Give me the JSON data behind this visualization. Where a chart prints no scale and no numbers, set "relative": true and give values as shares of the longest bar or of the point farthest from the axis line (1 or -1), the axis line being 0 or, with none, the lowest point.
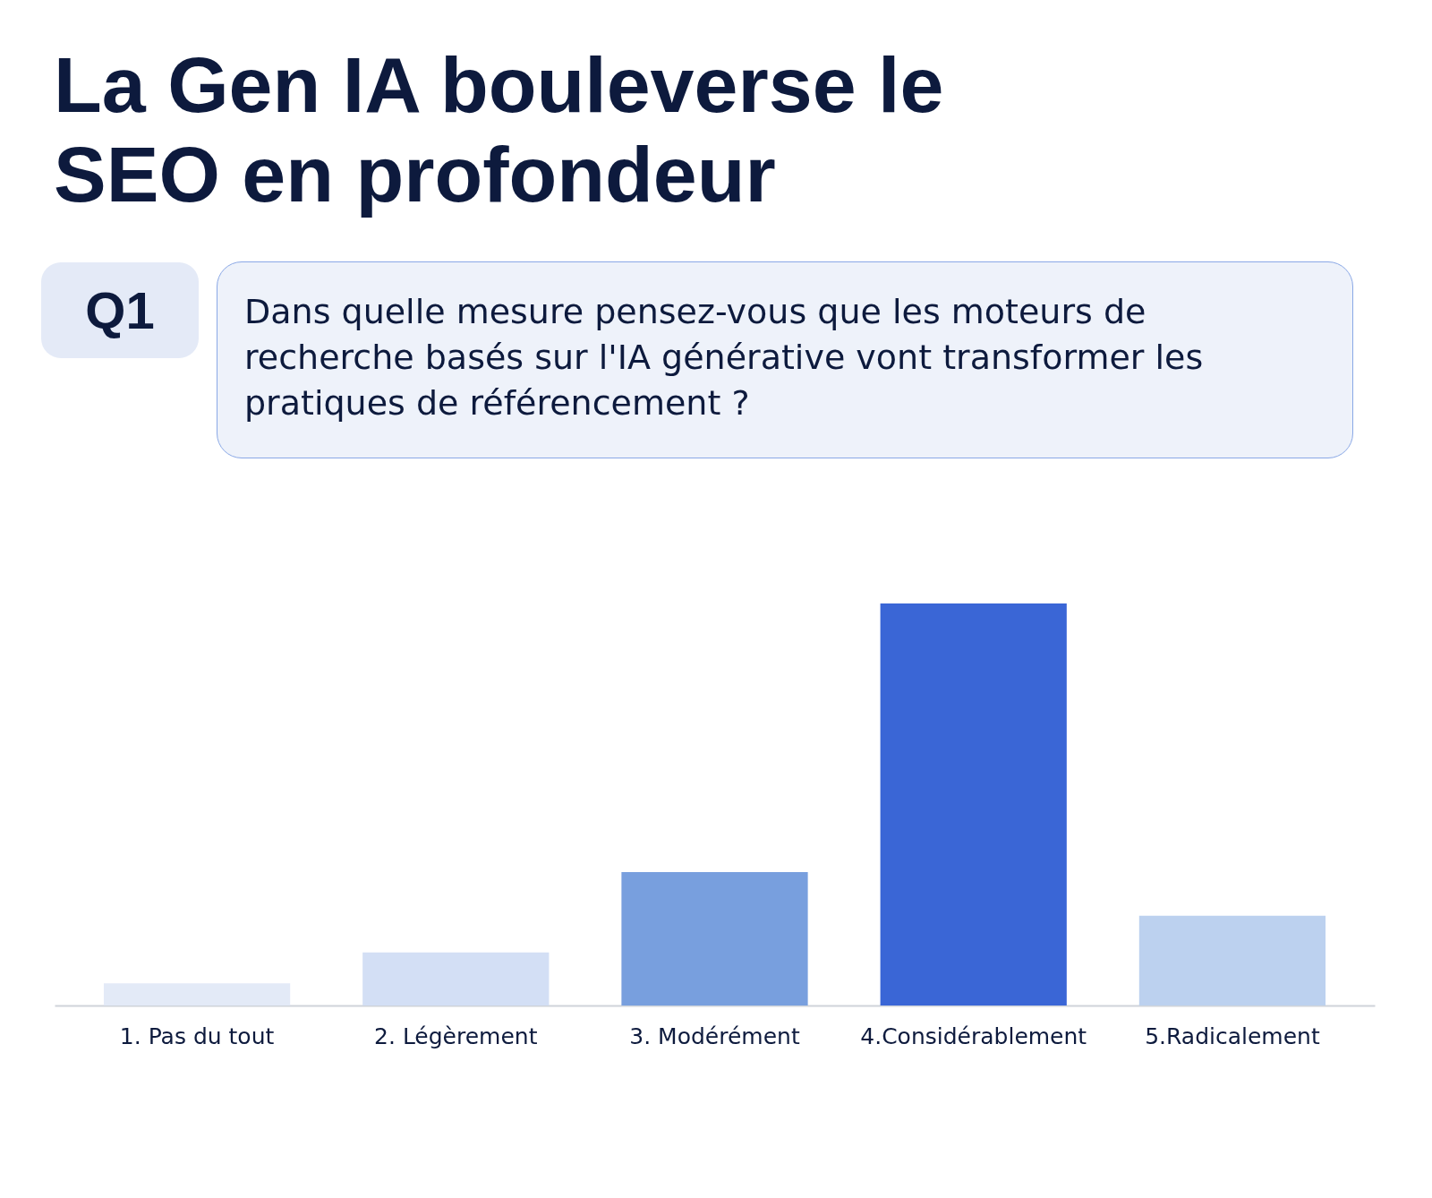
{
  "chart_data": {
    "type": "bar",
    "title": "La Gen IA bouleverse le SEO en profondeur",
    "subtitle": "Dans quelle mesure pensez-vous que les moteurs de recherche basés sur l'IA générative vont transformer les pratiques de référencement ?",
    "annotations": [
      "Q1"
    ],
    "categories": [
      "1. Pas du tout",
      "2. Légèrement",
      "3. Modérément",
      "4.Considérablement",
      "5.Radicalement"
    ],
    "values": [
      0.055,
      0.132,
      0.332,
      1,
      0.223
    ],
    "colors": [
      "#e3eaf7",
      "#d3dff5",
      "#789fde",
      "#3a66d6",
      "#bcd1ef"
    ],
    "relative": true
  }
}
